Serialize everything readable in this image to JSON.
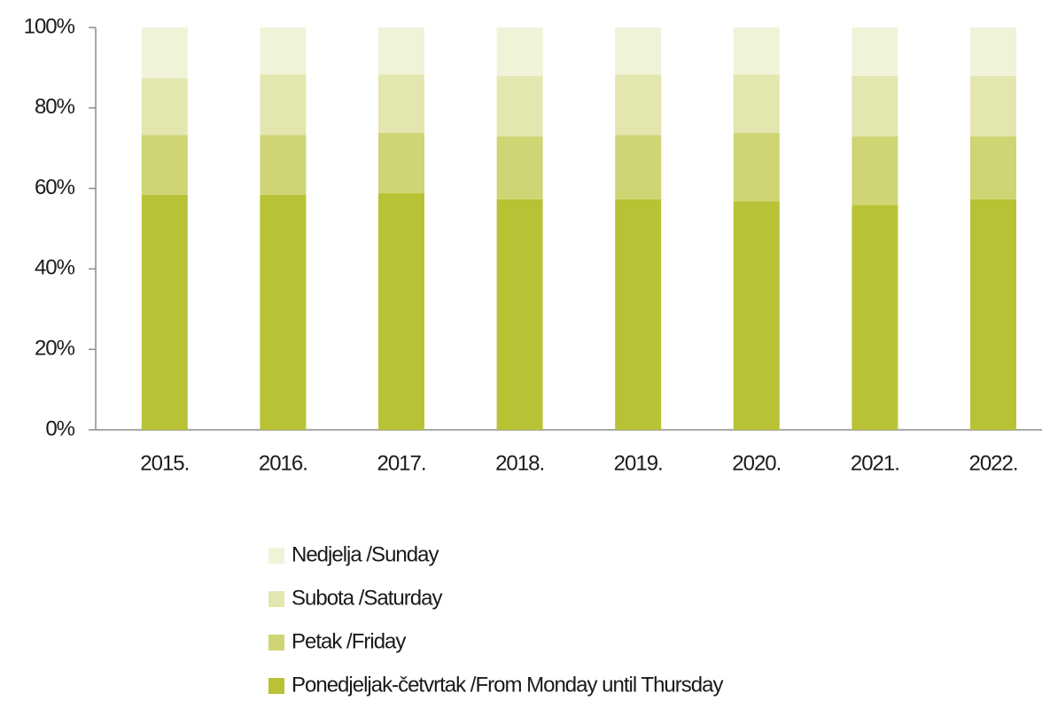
{
  "chart_data": {
    "type": "stacked_bar",
    "categories": [
      "2015.",
      "2016.",
      "2017.",
      "2018.",
      "2019.",
      "2020.",
      "2021.",
      "2022."
    ],
    "series": [
      {
        "name": "Ponedjeljak-četvrtak /From Monday until Thursday",
        "color": "#b9c235",
        "values": [
          58.4,
          58.4,
          58.8,
          57.3,
          57.3,
          56.8,
          55.9,
          57.3
        ]
      },
      {
        "name": "Petak /Friday",
        "color": "#cfd474",
        "values": [
          14.9,
          14.9,
          15.0,
          15.6,
          16.0,
          17.0,
          17.0,
          15.6
        ]
      },
      {
        "name": "Subota /Saturday",
        "color": "#e3e6ae",
        "values": [
          14.1,
          15.0,
          14.5,
          15.0,
          15.0,
          14.5,
          15.0,
          15.0
        ]
      },
      {
        "name": "Nedjelja /Sunday",
        "color": "#f1f3d9",
        "values": [
          12.6,
          11.7,
          11.7,
          12.1,
          11.7,
          11.7,
          12.1,
          12.1
        ]
      }
    ],
    "ylim": [
      0,
      100
    ],
    "yticks": [
      {
        "value": 0,
        "label": "0%"
      },
      {
        "value": 20,
        "label": "20%"
      },
      {
        "value": 40,
        "label": "40%"
      },
      {
        "value": 60,
        "label": "60%"
      },
      {
        "value": 80,
        "label": "80%"
      },
      {
        "value": 100,
        "label": "100%"
      }
    ],
    "legend": "bottom"
  }
}
